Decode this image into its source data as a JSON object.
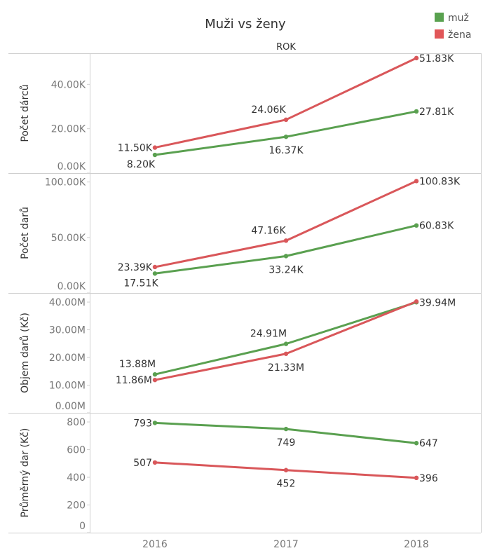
{
  "chart_data": {
    "type": "line",
    "title": "Muži vs ženy",
    "column_header": "ROK",
    "categories": [
      "2016",
      "2017",
      "2018"
    ],
    "legend": {
      "placement": "top-right",
      "entries": [
        {
          "name": "muž",
          "color": "#59a14f"
        },
        {
          "name": "žena",
          "color": "#e15759"
        }
      ]
    },
    "panels": [
      {
        "ylabel": "Počet dárců",
        "ylim": [
          0,
          54000
        ],
        "ticks": [
          0,
          20000,
          40000
        ],
        "tick_labels": [
          "0.00K",
          "20.00K",
          "40.00K"
        ],
        "series": [
          {
            "name": "muž",
            "color": "#5aa050",
            "values": [
              8200,
              16370,
              27810
            ],
            "labels": [
              "8.20K",
              "16.37K",
              "27.81K"
            ],
            "label_pos": [
              "below-left",
              "below",
              "right"
            ]
          },
          {
            "name": "žena",
            "color": "#d9575a",
            "values": [
              11500,
              24060,
              51830
            ],
            "labels": [
              "11.50K",
              "24.06K",
              "51.83K"
            ],
            "label_pos": [
              "left",
              "above-left",
              "right"
            ]
          }
        ]
      },
      {
        "ylabel": "Počet darů",
        "ylim": [
          0,
          108000
        ],
        "ticks": [
          0,
          50000,
          100000
        ],
        "tick_labels": [
          "0.00K",
          "50.00K",
          "100.00K"
        ],
        "series": [
          {
            "name": "muž",
            "color": "#5aa050",
            "values": [
              17510,
              33240,
              60830
            ],
            "labels": [
              "17.51K",
              "33.24K",
              "60.83K"
            ],
            "label_pos": [
              "below-left",
              "below",
              "right"
            ]
          },
          {
            "name": "žena",
            "color": "#d9575a",
            "values": [
              23390,
              47160,
              100830
            ],
            "labels": [
              "23.39K",
              "47.16K",
              "100.83K"
            ],
            "label_pos": [
              "left",
              "above-left",
              "right"
            ]
          }
        ]
      },
      {
        "ylabel": "Objem darů (Kč)",
        "ylim": [
          0,
          43300000
        ],
        "ticks": [
          0,
          10000000,
          20000000,
          30000000,
          40000000
        ],
        "tick_labels": [
          "0.00M",
          "10.00M",
          "20.00M",
          "30.00M",
          "40.00M"
        ],
        "series": [
          {
            "name": "muž",
            "color": "#5aa050",
            "values": [
              13880000,
              24910000,
              39940000
            ],
            "labels": [
              "13.88M",
              "24.91M",
              "39.94M"
            ],
            "label_pos": [
              "above-left",
              "above-left",
              "right"
            ]
          },
          {
            "name": "žena",
            "color": "#d9575a",
            "values": [
              11860000,
              21330000,
              40200000
            ],
            "labels": [
              "11.86M",
              "21.33M",
              null
            ],
            "label_pos": [
              "left",
              "below",
              "none"
            ]
          }
        ]
      },
      {
        "ylabel": "Průměrný dar (Kč)",
        "ylim": [
          0,
          866
        ],
        "ticks": [
          0,
          200,
          400,
          600,
          800
        ],
        "tick_labels": [
          "0",
          "200",
          "400",
          "600",
          "800"
        ],
        "series": [
          {
            "name": "muž",
            "color": "#5aa050",
            "values": [
              793,
              749,
              647
            ],
            "labels": [
              "793",
              "749",
              "647"
            ],
            "label_pos": [
              "left",
              "below",
              "right"
            ]
          },
          {
            "name": "žena",
            "color": "#d9575a",
            "values": [
              507,
              452,
              396
            ],
            "labels": [
              "507",
              "452",
              "396"
            ],
            "label_pos": [
              "left",
              "below",
              "right"
            ]
          }
        ]
      }
    ]
  }
}
